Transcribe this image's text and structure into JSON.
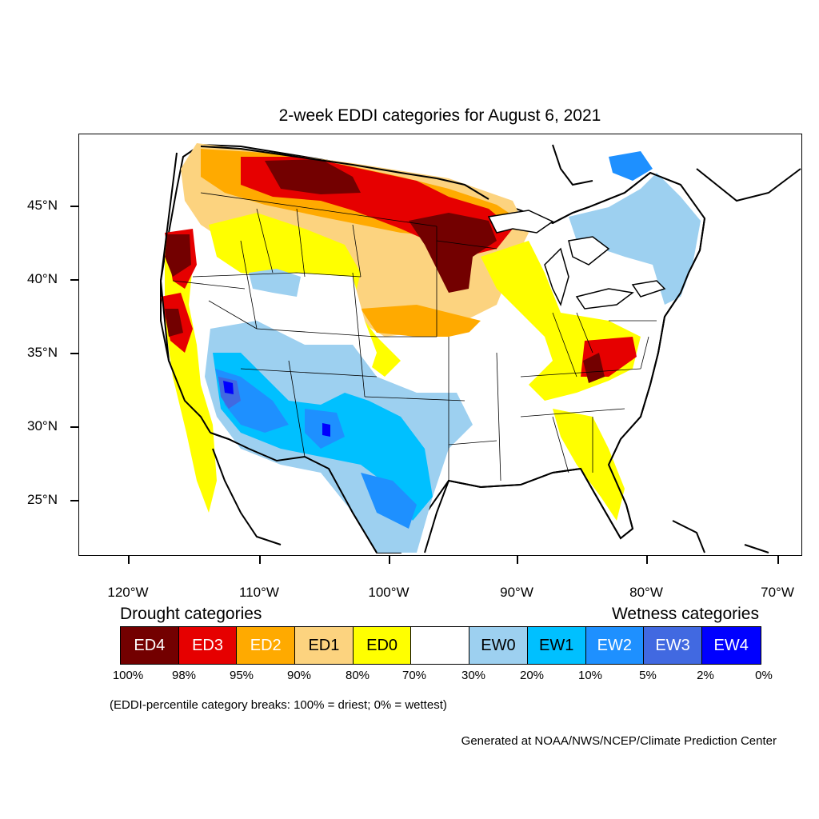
{
  "title": "2-week EDDI categories for August 6, 2021",
  "map": {
    "lat_labels": [
      "45°N",
      "40°N",
      "35°N",
      "30°N",
      "25°N"
    ],
    "lon_labels": [
      "120°W",
      "110°W",
      "100°W",
      "90°W",
      "80°W",
      "70°W"
    ]
  },
  "legend": {
    "drought_heading": "Drought categories",
    "wetness_heading": "Wetness categories",
    "categories": [
      {
        "label": "ED4",
        "color": "#730000"
      },
      {
        "label": "ED3",
        "color": "#e60000"
      },
      {
        "label": "ED2",
        "color": "#ffaa00"
      },
      {
        "label": "ED1",
        "color": "#fcd37f"
      },
      {
        "label": "ED0",
        "color": "#ffff00"
      },
      {
        "label": "",
        "color": "#ffffff"
      },
      {
        "label": "EW0",
        "color": "#9dd0f0"
      },
      {
        "label": "EW1",
        "color": "#00c0ff"
      },
      {
        "label": "EW2",
        "color": "#1e90ff"
      },
      {
        "label": "EW3",
        "color": "#4169e1"
      },
      {
        "label": "EW4",
        "color": "#0000ff"
      }
    ],
    "breaks": [
      "100%",
      "98%",
      "95%",
      "90%",
      "80%",
      "70%",
      "30%",
      "20%",
      "10%",
      "5%",
      "2%",
      "0%"
    ]
  },
  "note": "(EDDI-percentile category breaks: 100% = driest; 0% = wettest)",
  "credit": "Generated at NOAA/NWS/NCEP/Climate Prediction Center"
}
